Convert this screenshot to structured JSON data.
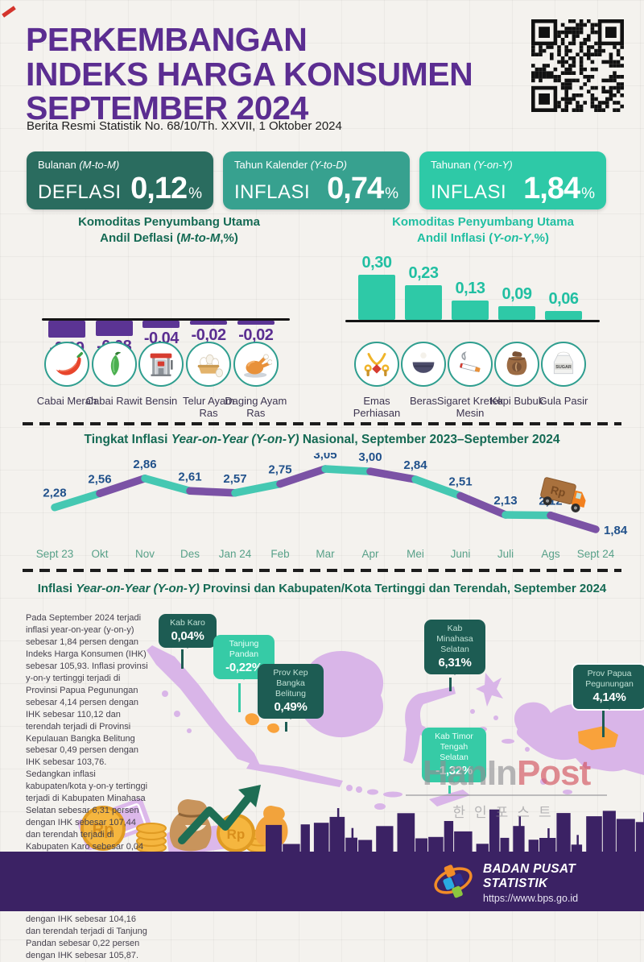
{
  "header": {
    "title_line1": "PERKEMBANGAN",
    "title_line2": "INDEKS HARGA KONSUMEN",
    "title_line3": "SEPTEMBER 2024",
    "subtitle": "Berita Resmi Statistik No. 68/10/Th. XXVII, 1 Oktober 2024"
  },
  "stat_boxes": [
    {
      "period": "Bulanan ",
      "period_italic": "(M-to-M)",
      "type": "DEFLASI",
      "value": "0,12",
      "unit": "%",
      "color": "#2a6c5f"
    },
    {
      "period": "Tahun Kalender ",
      "period_italic": "(Y-to-D)",
      "type": "INFLASI",
      "value": "0,74",
      "unit": "%",
      "color": "#37a18f"
    },
    {
      "period": "Tahunan ",
      "period_italic": "(Y-on-Y)",
      "type": "INFLASI",
      "value": "1,84",
      "unit": "%",
      "color": "#2ec9a7"
    }
  ],
  "section_deflasi": {
    "title_line1": "Komoditas Penyumbang Utama",
    "title_line2_pre": "Andil Deflasi (",
    "title_line2_italic": "M-to-M",
    "title_line2_post": ",%)"
  },
  "section_inflasi": {
    "title_line1": "Komoditas Penyumbang Utama",
    "title_line2_pre": "Andil Inflasi (",
    "title_line2_italic": "Y-on-Y",
    "title_line2_post": ",%)"
  },
  "line_section": {
    "t1": "Tingkat Inflasi ",
    "t2": "Year-on-Year (Y-on-Y)",
    "t3": " Nasional, September 2023–September 2024"
  },
  "map_section": {
    "t1": "Inflasi ",
    "t2": "Year-on-Year (Y-on-Y)",
    "t3": " Provinsi dan Kabupaten/Kota Tertinggi dan Terendah, September 2024",
    "paragraph": "Pada September 2024 terjadi inflasi year-on-year (y-on-y) sebesar 1,84 persen dengan Indeks Harga Konsumen (IHK) sebesar 105,93. Inflasi provinsi y-on-y tertinggi terjadi di Provinsi Papua Pegunungan sebesar 4,14 persen dengan IHK sebesar 110,12 dan terendah terjadi di Provinsi Kepulauan Bangka Belitung sebesar 0,49 persen dengan IHK sebesar 103,76. Sedangkan inflasi kabupaten/kota y-on-y tertinggi terjadi di Kabupaten Minahasa Selatan sebesar 6,31 persen dengan IHK sebesar 107,44 dan terendah terjadi di Kabupaten Karo sebesar 0,04 persen dengan IHK sebesar 105,80. Deflasi kabupaten/kota y-on-y terdalam terjadi di Kabupaten Timor Tengah Selatan sebesar 1,32 persen dengan IHK sebesar 104,16 dan terendah terjadi di Tanjung Pandan sebesar 0,22 persen dengan IHK sebesar 105,87.",
    "callouts": [
      {
        "id": "kab-karo",
        "lines": [
          "Kab Karo"
        ],
        "value": "0,04%",
        "theme": "dark"
      },
      {
        "id": "tanjung-pandan",
        "lines": [
          "Tanjung",
          "Pandan"
        ],
        "value": "-0,22%",
        "theme": "light"
      },
      {
        "id": "prov-kep-bangka-belitung",
        "lines": [
          "Prov Kep",
          "Bangka",
          "Belitung"
        ],
        "value": "0,49%",
        "theme": "dark"
      },
      {
        "id": "kab-minahasa-selatan",
        "lines": [
          "Kab",
          "Minahasa",
          "Selatan"
        ],
        "value": "6,31%",
        "theme": "dark"
      },
      {
        "id": "kab-timor-tengah-selatan",
        "lines": [
          "Kab Timor",
          "Tengah",
          "Selatan"
        ],
        "value": "-1,32%",
        "theme": "light"
      },
      {
        "id": "prov-papua-pegunungan",
        "lines": [
          "Prov Papua",
          "Pegunungan"
        ],
        "value": "4,14%",
        "theme": "dark-outline"
      }
    ]
  },
  "illustrations": {
    "sugar_label": "SUGAR",
    "coin_label": "Rp",
    "truck_label": "Rp"
  },
  "watermark": {
    "part1": "HanIn",
    "part2": "Post",
    "subtitle": "한인포스트"
  },
  "footer": {
    "org": "BADAN PUSAT STATISTIK",
    "url": "https://www.bps.go.id"
  },
  "chart_data": [
    {
      "type": "bar",
      "title": "Komoditas Penyumbang Utama Andil Deflasi (M-to-M,%)",
      "categories": [
        "Cabai Merah",
        "Cabai Rawit",
        "Bensin",
        "Telur Ayam Ras",
        "Daging Ayam Ras"
      ],
      "values": [
        -0.09,
        -0.08,
        -0.04,
        -0.02,
        -0.02
      ],
      "labels": [
        "-0,09",
        "-0,08",
        "-0,04",
        "-0,02",
        "-0,02"
      ],
      "icons": [
        "red-chili-icon",
        "green-chili-icon",
        "fuel-station-icon",
        "eggs-icon",
        "roast-chicken-icon"
      ],
      "bar_color": "#5b3494",
      "value_color": "#5b2e91",
      "ylim": [
        -0.1,
        0
      ]
    },
    {
      "type": "bar",
      "title": "Komoditas Penyumbang Utama Andil Inflasi (Y-on-Y,%)",
      "categories": [
        "Emas Perhiasan",
        "Beras",
        "Sigaret Kretek Mesin",
        "Kopi Bubuk",
        "Gula Pasir"
      ],
      "values": [
        0.3,
        0.23,
        0.13,
        0.09,
        0.06
      ],
      "labels": [
        "0,30",
        "0,23",
        "0,13",
        "0,09",
        "0,06"
      ],
      "icons": [
        "gold-jewelry-icon",
        "rice-bowl-icon",
        "cigarette-icon",
        "coffee-sack-icon",
        "sugar-bag-icon"
      ],
      "bar_color": "#2ec9a7",
      "value_color": "#21bfa2",
      "ylim": [
        0,
        0.35
      ]
    },
    {
      "type": "line",
      "title": "Tingkat Inflasi Year-on-Year (Y-on-Y) Nasional, September 2023–September 2024",
      "x": [
        "Sept 23",
        "Okt",
        "Nov",
        "Des",
        "Jan 24",
        "Feb",
        "Mar",
        "Apr",
        "Mei",
        "Juni",
        "Juli",
        "Ags",
        "Sept 24"
      ],
      "values": [
        2.28,
        2.56,
        2.86,
        2.61,
        2.57,
        2.75,
        3.05,
        3.0,
        2.84,
        2.51,
        2.13,
        2.12,
        1.84
      ],
      "labels": [
        "2,28",
        "2,56",
        "2,86",
        "2,61",
        "2,57",
        "2,75",
        "3,05",
        "3,00",
        "2,84",
        "2,51",
        "2,13",
        "2,12",
        "1,84"
      ],
      "segment_colors": [
        "#45c8b2",
        "#7b52a5"
      ],
      "ylim": [
        1.8,
        3.1
      ],
      "grid": false,
      "legend": "none"
    }
  ]
}
